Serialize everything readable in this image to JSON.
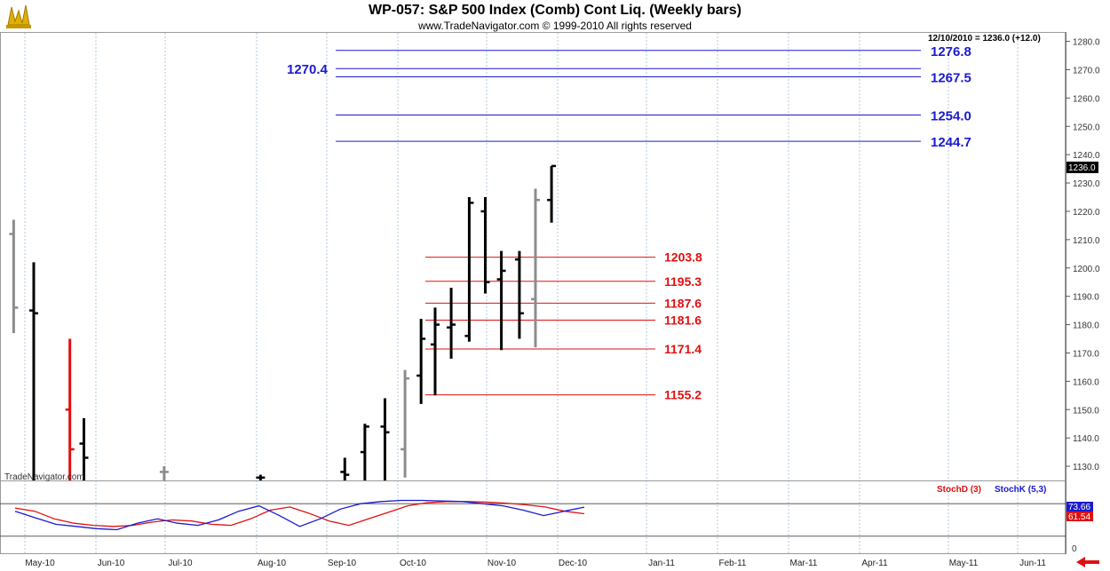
{
  "header": {
    "title": "WP-057:  S&P 500 Index (Comb) Cont Liq.  (Weekly bars)",
    "subtitle": "www.TradeNavigator.com © 1999-2010 All rights reserved",
    "info_line": "12/10/2010 = 1236.0 (+12.0)",
    "watermark": "TradeNavigator.com",
    "last_price": "1236.0"
  },
  "indicator": {
    "stochd_label": "StochD (3)",
    "stochk_label": "StochK (5,3)",
    "stochd_value": "61.54",
    "stochk_value": "73.66",
    "zero_label": "0"
  },
  "colors": {
    "bar_up": "#000000",
    "bar_gray": "#8c8c8c",
    "bar_red": "#e01010",
    "blue_levels": "#1a1ad0",
    "red_levels": "#e01010",
    "stochd": "#e01010",
    "stochk": "#1a1ad0"
  },
  "chart_data": {
    "type": "ohlc",
    "title": "WP-057:  S&P 500 Index (Comb) Cont Liq.  (Weekly bars)",
    "ylim": [
      1125,
      1283
    ],
    "y_ticks": [
      "1130.0",
      "1140.0",
      "1150.0",
      "1160.0",
      "1170.0",
      "1180.0",
      "1190.0",
      "1200.0",
      "1210.0",
      "1220.0",
      "1230.0",
      "1240.0",
      "1250.0",
      "1260.0",
      "1270.0",
      "1280.0"
    ],
    "x_labels": [
      "May-10",
      "Jun-10",
      "Jul-10",
      "Aug-10",
      "Sep-10",
      "Oct-10",
      "Nov-10",
      "Dec-10",
      "Jan-11",
      "Feb-11",
      "Mar-11",
      "Apr-11",
      "May-11",
      "Jun-11"
    ],
    "bars": [
      {
        "week": -1,
        "o": 1212,
        "h": 1217,
        "l": 1177,
        "c": 1186,
        "color": "gray"
      },
      {
        "week": 0,
        "o": 1185,
        "h": 1202,
        "l": 1125,
        "c": 1184,
        "color": "black"
      },
      {
        "week": 1.8,
        "o": 1150,
        "h": 1175,
        "l": 1125,
        "c": 1136,
        "color": "red"
      },
      {
        "week": 2.5,
        "o": 1138,
        "h": 1147,
        "l": 1125,
        "c": 1133,
        "color": "black"
      },
      {
        "week": 6.5,
        "o": 1128,
        "h": 1130,
        "l": 1125,
        "c": 1128,
        "color": "gray"
      },
      {
        "week": 11.3,
        "o": 1126,
        "h": 1127,
        "l": 1125,
        "c": 1126,
        "color": "black"
      },
      {
        "week": 15.5,
        "o": 1128,
        "h": 1133,
        "l": 1125,
        "c": 1127,
        "color": "black"
      },
      {
        "week": 16.5,
        "o": 1135,
        "h": 1145,
        "l": 1125,
        "c": 1144,
        "color": "black"
      },
      {
        "week": 17.5,
        "o": 1144,
        "h": 1154,
        "l": 1125,
        "c": 1142,
        "color": "black"
      },
      {
        "week": 18.5,
        "o": 1136,
        "h": 1164,
        "l": 1126,
        "c": 1161,
        "color": "gray"
      },
      {
        "week": 19.3,
        "o": 1162,
        "h": 1182,
        "l": 1152,
        "c": 1175,
        "color": "black"
      },
      {
        "week": 20.0,
        "o": 1173,
        "h": 1186,
        "l": 1155,
        "c": 1180,
        "color": "black"
      },
      {
        "week": 20.8,
        "o": 1179,
        "h": 1193,
        "l": 1168,
        "c": 1180,
        "color": "black"
      },
      {
        "week": 21.7,
        "o": 1176,
        "h": 1225,
        "l": 1174,
        "c": 1223,
        "color": "black"
      },
      {
        "week": 22.5,
        "o": 1220,
        "h": 1225,
        "l": 1191,
        "c": 1195,
        "color": "black"
      },
      {
        "week": 23.3,
        "o": 1196,
        "h": 1206,
        "l": 1171,
        "c": 1199,
        "color": "black"
      },
      {
        "week": 24.2,
        "o": 1203,
        "h": 1206,
        "l": 1175,
        "c": 1184,
        "color": "black"
      },
      {
        "week": 25.0,
        "o": 1189,
        "h": 1228,
        "l": 1172,
        "c": 1224,
        "color": "gray"
      },
      {
        "week": 25.8,
        "o": 1224,
        "h": 1236,
        "l": 1216,
        "c": 1236,
        "color": "black"
      }
    ],
    "blue_levels": [
      {
        "value": 1276.8,
        "label": "1276.8"
      },
      {
        "value": 1270.4,
        "label": "1270.4"
      },
      {
        "value": 1267.5,
        "label": "1267.5"
      },
      {
        "value": 1254.0,
        "label": "1254.0"
      },
      {
        "value": 1244.7,
        "label": "1244.7"
      }
    ],
    "red_levels": [
      {
        "value": 1203.8,
        "label": "1203.8"
      },
      {
        "value": 1195.3,
        "label": "1195.3"
      },
      {
        "value": 1187.6,
        "label": "1187.6"
      },
      {
        "value": 1181.6,
        "label": "1181.6"
      },
      {
        "value": 1171.4,
        "label": "1171.4"
      },
      {
        "value": 1155.2,
        "label": "1155.2"
      }
    ],
    "stochastic": {
      "ylim": [
        0,
        100
      ],
      "stochd": [
        72,
        66,
        52,
        44,
        40,
        38,
        40,
        46,
        50,
        48,
        42,
        40,
        52,
        68,
        74,
        62,
        48,
        40,
        52,
        64,
        76,
        82,
        84,
        84,
        83,
        81,
        78,
        74,
        66,
        61.54
      ],
      "stochk": [
        66,
        54,
        42,
        38,
        34,
        32,
        44,
        52,
        44,
        40,
        50,
        66,
        76,
        58,
        38,
        52,
        70,
        80,
        84,
        86,
        86,
        85,
        84,
        80,
        76,
        68,
        58,
        66,
        73.66
      ]
    }
  }
}
